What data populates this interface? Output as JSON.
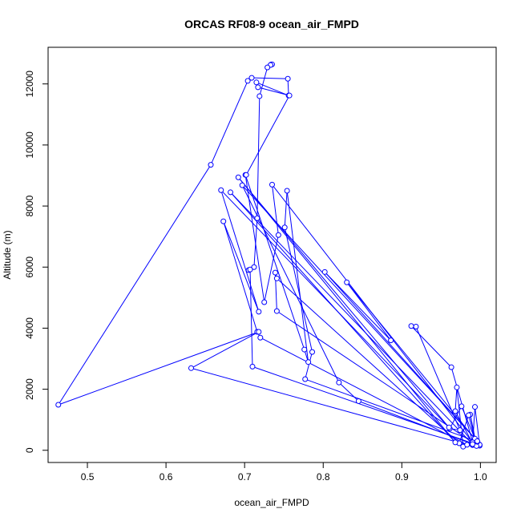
{
  "chart_data": {
    "type": "line",
    "title": "ORCAS RF08-9 ocean_air_FMPD",
    "xlabel": "ocean_air_FMPD",
    "ylabel": "Altitude (m)",
    "xlim": [
      0.45,
      1.02
    ],
    "ylim": [
      -400,
      13200
    ],
    "x_ticks": [
      0.5,
      0.6,
      0.7,
      0.8,
      0.9,
      1.0
    ],
    "x_tick_labels": [
      "0.5",
      "0.6",
      "0.7",
      "0.8",
      "0.9",
      "1.0"
    ],
    "y_ticks": [
      0,
      2000,
      4000,
      6000,
      8000,
      10000,
      12000
    ],
    "y_tick_labels": [
      "0",
      "2000",
      "4000",
      "6000",
      "8000",
      "10000",
      "12000"
    ],
    "grid": false,
    "legend": "none",
    "series_color": "#0000ff",
    "series": [
      {
        "points": [
          [
            0.734,
            12640
          ],
          [
            0.735,
            12640
          ],
          [
            0.733,
            12620
          ],
          [
            0.729,
            12540
          ],
          [
            0.719,
            11600
          ],
          [
            0.716,
            7600
          ],
          [
            0.712,
            6000
          ],
          [
            0.705,
            5900
          ],
          [
            0.707,
            5920
          ],
          [
            0.71,
            2740
          ],
          [
            0.999,
            150
          ],
          [
            0.998,
            200
          ],
          [
            0.999,
            180
          ],
          [
            0.993,
            1420
          ],
          [
            0.99,
            170
          ],
          [
            0.978,
            120
          ],
          [
            0.97,
            2060
          ],
          [
            0.968,
            1280
          ],
          [
            0.991,
            190
          ],
          [
            0.963,
            2720
          ],
          [
            0.912,
            4070
          ],
          [
            0.918,
            4050
          ],
          [
            0.974,
            660
          ],
          [
            0.961,
            710
          ],
          [
            0.976,
            1440
          ],
          [
            0.993,
            380
          ],
          [
            0.987,
            1170
          ],
          [
            0.995,
            140
          ],
          [
            0.985,
            1150
          ],
          [
            0.973,
            230
          ],
          [
            0.741,
            5630
          ],
          [
            0.739,
            5820
          ],
          [
            0.741,
            4560
          ],
          [
            0.99,
            260
          ],
          [
            0.735,
            8700
          ],
          [
            0.743,
            7050
          ],
          [
            0.725,
            4850
          ],
          [
            0.701,
            9020
          ],
          [
            0.776,
            3300
          ],
          [
            0.781,
            2890
          ],
          [
            0.754,
            8500
          ],
          [
            0.751,
            7300
          ],
          [
            0.786,
            3220
          ],
          [
            0.777,
            2330
          ],
          [
            0.996,
            280
          ],
          [
            0.83,
            5500
          ],
          [
            0.886,
            3600
          ],
          [
            0.802,
            5840
          ],
          [
            0.996,
            300
          ],
          [
            0.697,
            8680
          ],
          [
            0.82,
            2220
          ],
          [
            0.845,
            1610
          ],
          [
            0.99,
            200
          ],
          [
            0.682,
            8450
          ],
          [
            0.968,
            260
          ],
          [
            0.692,
            8940
          ],
          [
            0.96,
            750
          ],
          [
            0.67,
            8520
          ],
          [
            0.718,
            4540
          ],
          [
            0.673,
            7500
          ],
          [
            0.716,
            3880
          ],
          [
            0.72,
            3690
          ],
          [
            0.983,
            180
          ],
          [
            0.632,
            2690
          ],
          [
            0.718,
            3880
          ],
          [
            0.463,
            1490
          ],
          [
            0.657,
            9350
          ],
          [
            0.704,
            12100
          ],
          [
            0.709,
            12200
          ],
          [
            0.755,
            12170
          ],
          [
            0.756,
            11620
          ],
          [
            0.715,
            12050
          ],
          [
            0.717,
            11890
          ],
          [
            0.757,
            11620
          ],
          [
            0.702,
            9020
          ]
        ]
      }
    ]
  }
}
